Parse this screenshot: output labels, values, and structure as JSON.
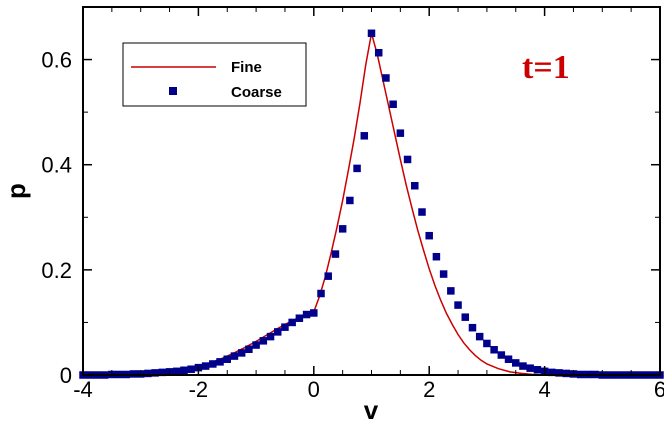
{
  "chart_data": {
    "type": "line",
    "title": "",
    "xlabel": "v",
    "ylabel": "p",
    "xlim": [
      -4,
      6
    ],
    "ylim": [
      0,
      0.7
    ],
    "xticks": [
      -4,
      -2,
      0,
      2,
      4,
      6
    ],
    "xtick_labels": [
      "-4",
      "-2",
      "0",
      "2",
      "4",
      "6"
    ],
    "yticks": [
      0,
      0.2,
      0.4,
      0.6
    ],
    "ytick_labels": [
      "0",
      "0.2",
      "0.4",
      "0.6"
    ],
    "grid": false,
    "legend": "top-left",
    "annotation": {
      "text": "t=1",
      "color": "#cc0000"
    },
    "series": [
      {
        "name": "Fine",
        "style": "line",
        "color": "#cc0000",
        "x": [
          -4.0,
          -3.8,
          -3.6,
          -3.4,
          -3.2,
          -3.0,
          -2.8,
          -2.6,
          -2.4,
          -2.2,
          -2.0,
          -1.8,
          -1.6,
          -1.4,
          -1.2,
          -1.0,
          -0.8,
          -0.6,
          -0.4,
          -0.2,
          0.0,
          0.1,
          0.2,
          0.3,
          0.4,
          0.5,
          0.6,
          0.7,
          0.8,
          0.9,
          1.0,
          1.1,
          1.2,
          1.3,
          1.4,
          1.5,
          1.6,
          1.7,
          1.8,
          1.9,
          2.0,
          2.1,
          2.2,
          2.3,
          2.4,
          2.5,
          2.6,
          2.7,
          2.8,
          2.9,
          3.0,
          3.2,
          3.4,
          3.6,
          3.8,
          4.0,
          4.4,
          4.8,
          5.2,
          5.6,
          6.0
        ],
        "y": [
          0.0,
          0.0,
          0.0,
          0.001,
          0.002,
          0.003,
          0.004,
          0.006,
          0.008,
          0.012,
          0.017,
          0.023,
          0.031,
          0.041,
          0.052,
          0.064,
          0.077,
          0.09,
          0.102,
          0.112,
          0.12,
          0.15,
          0.187,
          0.232,
          0.28,
          0.332,
          0.39,
          0.45,
          0.517,
          0.59,
          0.65,
          0.61,
          0.56,
          0.51,
          0.46,
          0.41,
          0.362,
          0.318,
          0.276,
          0.238,
          0.202,
          0.17,
          0.142,
          0.117,
          0.096,
          0.077,
          0.061,
          0.048,
          0.037,
          0.028,
          0.021,
          0.012,
          0.006,
          0.003,
          0.001,
          0.0,
          0.0,
          0.0,
          0.0,
          0.0,
          0.0
        ]
      },
      {
        "name": "Coarse",
        "style": "markers",
        "marker": "square",
        "color": "#00008b",
        "x": [
          -4.0,
          -3.875,
          -3.75,
          -3.625,
          -3.5,
          -3.375,
          -3.25,
          -3.125,
          -3.0,
          -2.875,
          -2.75,
          -2.625,
          -2.5,
          -2.375,
          -2.25,
          -2.125,
          -2.0,
          -1.875,
          -1.75,
          -1.625,
          -1.5,
          -1.375,
          -1.25,
          -1.125,
          -1.0,
          -0.875,
          -0.75,
          -0.625,
          -0.5,
          -0.375,
          -0.25,
          -0.125,
          0.0,
          0.125,
          0.25,
          0.375,
          0.5,
          0.625,
          0.75,
          0.875,
          1.0,
          1.125,
          1.25,
          1.375,
          1.5,
          1.625,
          1.75,
          1.875,
          2.0,
          2.125,
          2.25,
          2.375,
          2.5,
          2.625,
          2.75,
          2.875,
          3.0,
          3.125,
          3.25,
          3.375,
          3.5,
          3.625,
          3.75,
          3.875,
          4.0,
          4.125,
          4.25,
          4.375,
          4.5,
          4.625,
          4.75,
          4.875,
          5.0,
          5.125,
          5.25,
          5.375,
          5.5,
          5.625,
          5.75,
          5.875,
          6.0
        ],
        "y": [
          0.0,
          0.0,
          0.0,
          0.0,
          0.001,
          0.001,
          0.001,
          0.002,
          0.002,
          0.003,
          0.004,
          0.005,
          0.006,
          0.007,
          0.009,
          0.011,
          0.014,
          0.017,
          0.021,
          0.025,
          0.03,
          0.036,
          0.042,
          0.049,
          0.057,
          0.065,
          0.073,
          0.082,
          0.091,
          0.1,
          0.108,
          0.115,
          0.118,
          0.155,
          0.188,
          0.23,
          0.278,
          0.332,
          0.393,
          0.455,
          0.65,
          0.613,
          0.565,
          0.515,
          0.46,
          0.41,
          0.36,
          0.31,
          0.265,
          0.225,
          0.192,
          0.16,
          0.133,
          0.11,
          0.09,
          0.073,
          0.06,
          0.048,
          0.038,
          0.03,
          0.023,
          0.017,
          0.013,
          0.01,
          0.007,
          0.005,
          0.004,
          0.003,
          0.002,
          0.001,
          0.001,
          0.001,
          0.0,
          0.0,
          0.0,
          0.0,
          0.0,
          0.0,
          0.0,
          0.0,
          0.0
        ]
      }
    ]
  }
}
